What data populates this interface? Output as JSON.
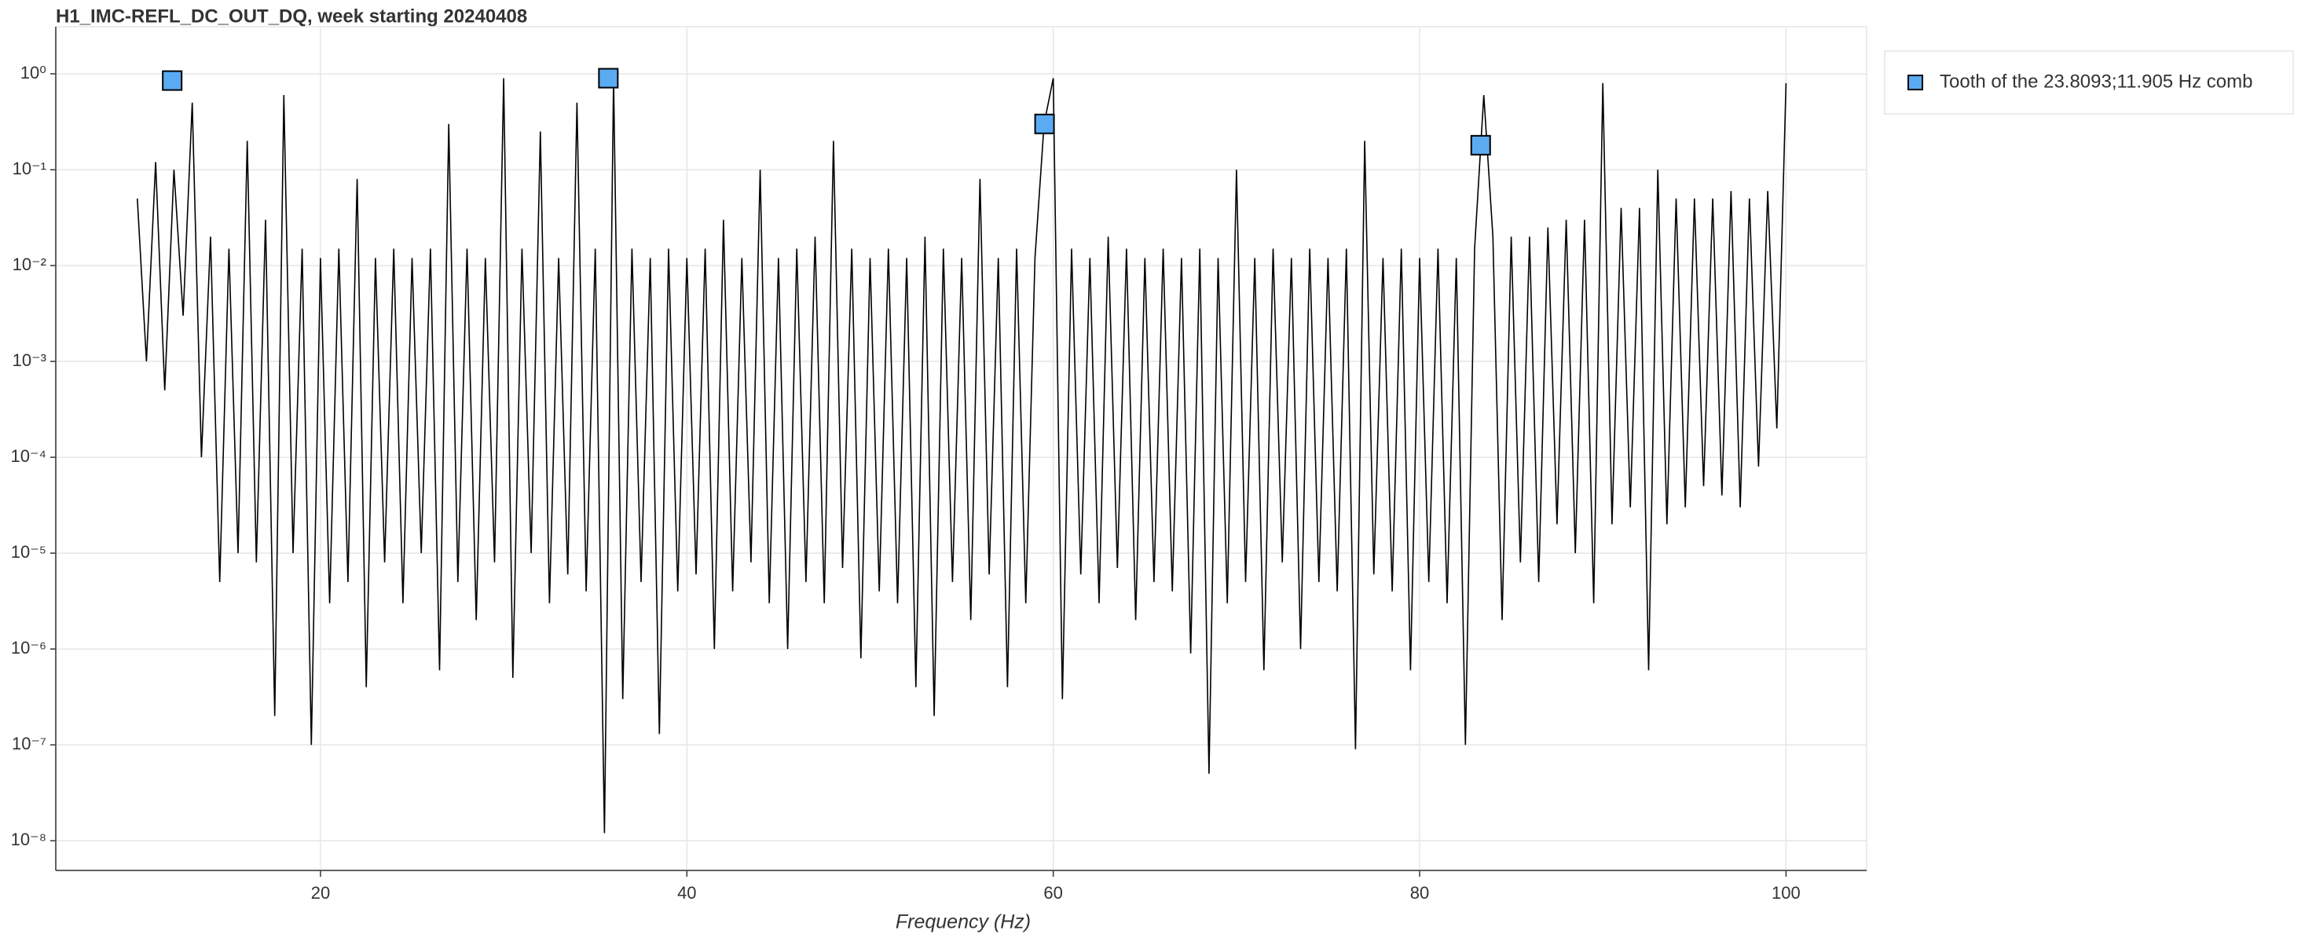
{
  "chart_data": {
    "type": "line",
    "title": "H1_IMC-REFL_DC_OUT_DQ, week starting 20240408",
    "x_label": "Frequency (Hz)",
    "log_y": true,
    "grid": true,
    "legend_position": "outside-right",
    "xlim": [
      5.55,
      104.4
    ],
    "xticks": [
      20,
      40,
      60,
      80,
      100
    ],
    "ylim": [
      4.9e-09,
      3.1
    ],
    "yticks": [
      {
        "value": 1,
        "label": "10⁰"
      },
      {
        "value": 0.1,
        "label": "10⁻¹"
      },
      {
        "value": 0.01,
        "label": "10⁻²"
      },
      {
        "value": 0.001,
        "label": "10⁻³"
      },
      {
        "value": 0.0001,
        "label": "10⁻⁴"
      },
      {
        "value": 1e-05,
        "label": "10⁻⁵"
      },
      {
        "value": 1e-06,
        "label": "10⁻⁶"
      },
      {
        "value": 1e-07,
        "label": "10⁻⁷"
      },
      {
        "value": 1e-08,
        "label": "10⁻⁸"
      }
    ],
    "series": [
      {
        "type": "line",
        "color": "#000000",
        "x": [
          10,
          10.5,
          11,
          11.5,
          12,
          12.5,
          13,
          13.5,
          14,
          14.5,
          15,
          15.5,
          16,
          16.5,
          17,
          17.5,
          18,
          18.5,
          19,
          19.5,
          20,
          20.5,
          21,
          21.5,
          22,
          22.5,
          23,
          23.5,
          24,
          24.5,
          25,
          25.5,
          26,
          26.5,
          27,
          27.5,
          28,
          28.5,
          29,
          29.5,
          30,
          30.5,
          31,
          31.5,
          32,
          32.5,
          33,
          33.5,
          34,
          34.5,
          35,
          35.5,
          36,
          36.5,
          37,
          37.5,
          38,
          38.5,
          39,
          39.5,
          40,
          40.5,
          41,
          41.5,
          42,
          42.5,
          43,
          43.5,
          44,
          44.5,
          45,
          45.5,
          46,
          46.5,
          47,
          47.5,
          48,
          48.5,
          49,
          49.5,
          50,
          50.5,
          51,
          51.5,
          52,
          52.5,
          53,
          53.5,
          54,
          54.5,
          55,
          55.5,
          56,
          56.5,
          57,
          57.5,
          58,
          58.5,
          59,
          59.5,
          60,
          60.5,
          61,
          61.5,
          62,
          62.5,
          63,
          63.5,
          64,
          64.5,
          65,
          65.5,
          66,
          66.5,
          67,
          67.5,
          68,
          68.5,
          69,
          69.5,
          70,
          70.5,
          71,
          71.5,
          72,
          72.5,
          73,
          73.5,
          74,
          74.5,
          75,
          75.5,
          76,
          76.5,
          77,
          77.5,
          78,
          78.5,
          79,
          79.5,
          80,
          80.5,
          81,
          81.5,
          82,
          82.5,
          83,
          83.5,
          84,
          84.5,
          85,
          85.5,
          86,
          86.5,
          87,
          87.5,
          88,
          88.5,
          89,
          89.5,
          90,
          90.5,
          91,
          91.5,
          92,
          92.5,
          93,
          93.5,
          94,
          94.5,
          95,
          95.5,
          96,
          96.5,
          97,
          97.5,
          98,
          98.5,
          99,
          99.5,
          100
        ],
        "values": [
          0.05,
          0.001,
          0.12,
          0.0005,
          0.1,
          0.003,
          0.5,
          0.0001,
          0.02,
          5e-06,
          0.015,
          1e-05,
          0.2,
          8e-06,
          0.03,
          2e-07,
          0.6,
          1e-05,
          0.015,
          1e-07,
          0.012,
          3e-06,
          0.015,
          5e-06,
          0.08,
          4e-07,
          0.012,
          8e-06,
          0.015,
          3e-06,
          0.012,
          1e-05,
          0.015,
          6e-07,
          0.3,
          5e-06,
          0.015,
          2e-06,
          0.012,
          8e-06,
          0.9,
          5e-07,
          0.015,
          1e-05,
          0.25,
          3e-06,
          0.012,
          6e-06,
          0.5,
          4e-06,
          0.015,
          1.2e-08,
          0.9,
          3e-07,
          0.015,
          5e-06,
          0.012,
          1.3e-07,
          0.015,
          4e-06,
          0.012,
          6e-06,
          0.015,
          1e-06,
          0.03,
          4e-06,
          0.012,
          8e-06,
          0.1,
          3e-06,
          0.012,
          1e-06,
          0.015,
          5e-06,
          0.02,
          3e-06,
          0.2,
          7e-06,
          0.015,
          8e-07,
          0.012,
          4e-06,
          0.015,
          3e-06,
          0.012,
          4e-07,
          0.02,
          2e-07,
          0.015,
          5e-06,
          0.012,
          2e-06,
          0.08,
          6e-06,
          0.012,
          4e-07,
          0.015,
          3e-06,
          0.012,
          0.3,
          0.9,
          3e-07,
          0.015,
          6e-06,
          0.012,
          3e-06,
          0.02,
          7e-06,
          0.015,
          2e-06,
          0.012,
          5e-06,
          0.015,
          4e-06,
          0.012,
          9e-07,
          0.015,
          5e-08,
          0.012,
          3e-06,
          0.1,
          5e-06,
          0.012,
          6e-07,
          0.015,
          8e-06,
          0.012,
          1e-06,
          0.015,
          5e-06,
          0.012,
          4e-06,
          0.015,
          9e-08,
          0.2,
          6e-06,
          0.012,
          4e-06,
          0.015,
          6e-07,
          0.012,
          5e-06,
          0.015,
          3e-06,
          0.012,
          1e-07,
          0.015,
          0.6,
          0.02,
          2e-06,
          0.02,
          8e-06,
          0.02,
          5e-06,
          0.025,
          2e-05,
          0.03,
          1e-05,
          0.03,
          3e-06,
          0.8,
          2e-05,
          0.04,
          3e-05,
          0.04,
          6e-07,
          0.1,
          2e-05,
          0.05,
          3e-05,
          0.05,
          5e-05,
          0.05,
          4e-05,
          0.06,
          3e-05,
          0.05,
          8e-05,
          0.06,
          0.0002,
          0.8
        ]
      },
      {
        "type": "scatter",
        "name": "Tooth of the 23.8093;11.905 Hz comb",
        "color": "#5aabf2",
        "x": [
          11.905,
          35.714,
          59.524,
          83.333
        ],
        "values": [
          0.85,
          0.9,
          0.3,
          0.18
        ]
      }
    ]
  }
}
